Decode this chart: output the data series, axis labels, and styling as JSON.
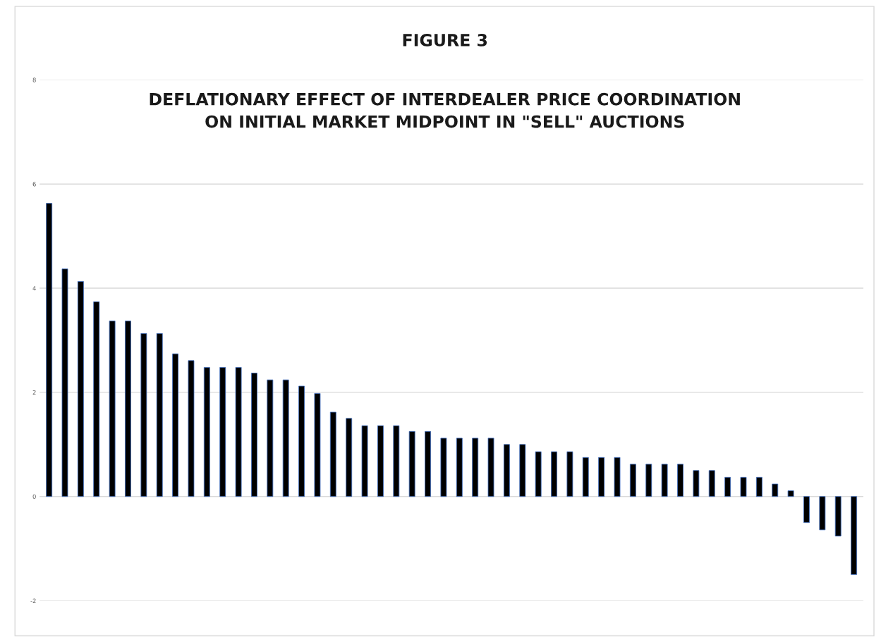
{
  "chart_data": {
    "type": "bar",
    "title": "FIGURE 3",
    "subtitle": "DEFLATIONARY EFFECT OF INTERDEALER PRICE COORDINATION\nON INITIAL MARKET MIDPOINT IN \"SELL\" AUCTIONS",
    "categories": [
      null,
      null,
      null,
      null,
      null,
      null,
      null,
      null,
      null,
      null,
      null,
      null,
      null,
      null,
      null,
      null,
      null,
      null,
      null,
      null,
      null,
      null,
      null,
      null,
      null,
      null,
      null,
      null,
      null,
      null,
      null,
      null,
      null,
      null,
      null,
      null,
      null,
      null,
      null,
      null,
      null,
      null,
      null,
      null,
      null,
      null,
      null,
      null,
      null,
      null,
      null,
      null
    ],
    "values": [
      5.63,
      4.37,
      4.13,
      3.74,
      3.37,
      3.37,
      3.13,
      3.13,
      2.74,
      2.61,
      2.48,
      2.48,
      2.48,
      2.37,
      2.24,
      2.24,
      2.12,
      1.98,
      1.62,
      1.5,
      1.36,
      1.36,
      1.36,
      1.25,
      1.25,
      1.12,
      1.12,
      1.12,
      1.12,
      1.0,
      1.0,
      0.86,
      0.86,
      0.86,
      0.75,
      0.75,
      0.75,
      0.62,
      0.62,
      0.62,
      0.62,
      0.5,
      0.5,
      0.37,
      0.37,
      0.37,
      0.24,
      0.11,
      -0.5,
      -0.64,
      -0.76,
      -1.5
    ],
    "color": "#000000",
    "ylim": [
      -2,
      8
    ],
    "yticks": [
      -2,
      0,
      2,
      4,
      6,
      8
    ],
    "grid": "y",
    "legend": false
  }
}
